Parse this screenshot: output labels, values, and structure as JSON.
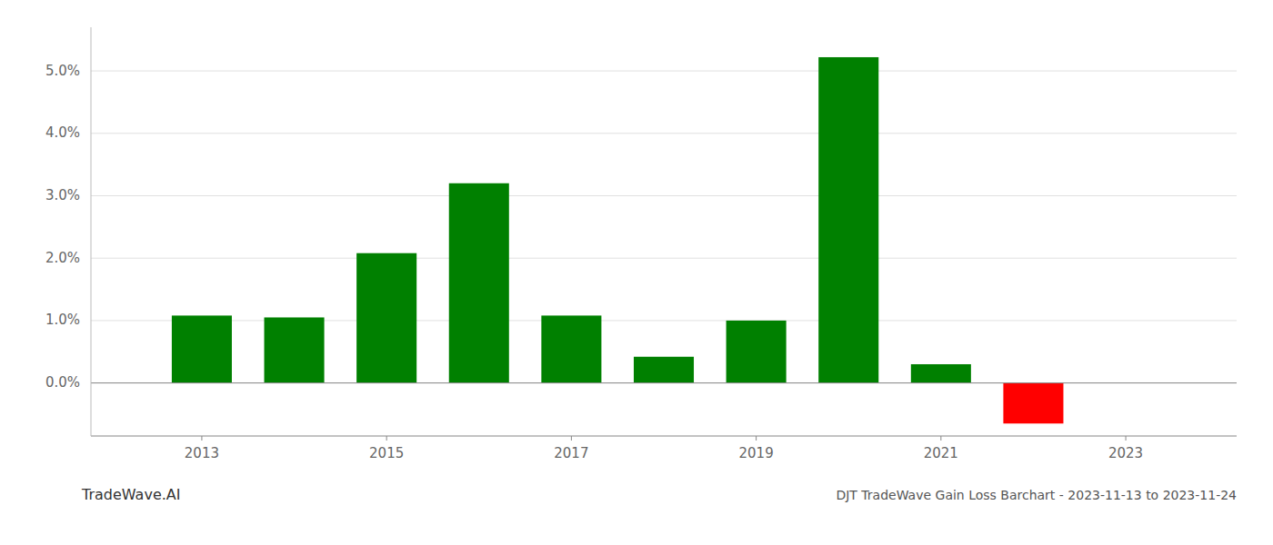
{
  "chart_data": {
    "type": "bar",
    "title": "DJT TradeWave Gain Loss Barchart - 2023-11-13 to 2023-11-24",
    "annotations": [
      "TradeWave.AI"
    ],
    "x": [
      2013,
      2014,
      2015,
      2016,
      2017,
      2018,
      2019,
      2020,
      2021,
      2022
    ],
    "values": [
      0.0108,
      0.0105,
      0.0208,
      0.032,
      0.0108,
      0.0042,
      0.01,
      0.0522,
      0.003,
      -0.0065
    ],
    "colors": [
      "#008000",
      "#008000",
      "#008000",
      "#008000",
      "#008000",
      "#008000",
      "#008000",
      "#008000",
      "#008000",
      "#ff0000"
    ],
    "xlim": [
      2011.8,
      2024.2
    ],
    "xticks": [
      2013,
      2015,
      2017,
      2019,
      2021,
      2023
    ],
    "ylim": [
      -0.0085,
      0.057
    ],
    "yticks": [
      {
        "value": 0.0,
        "label": "0.0%"
      },
      {
        "value": 0.01,
        "label": "1.0%"
      },
      {
        "value": 0.02,
        "label": "2.0%"
      },
      {
        "value": 0.03,
        "label": "3.0%"
      },
      {
        "value": 0.04,
        "label": "4.0%"
      },
      {
        "value": 0.05,
        "label": "5.0%"
      }
    ],
    "grid": true
  }
}
